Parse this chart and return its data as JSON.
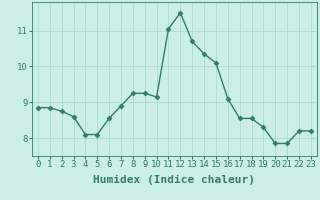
{
  "x": [
    0,
    1,
    2,
    3,
    4,
    5,
    6,
    7,
    8,
    9,
    10,
    11,
    12,
    13,
    14,
    15,
    16,
    17,
    18,
    19,
    20,
    21,
    22,
    23
  ],
  "y": [
    8.85,
    8.85,
    8.75,
    8.6,
    8.1,
    8.1,
    8.55,
    8.9,
    9.25,
    9.25,
    9.15,
    11.05,
    11.5,
    10.7,
    10.35,
    10.1,
    9.1,
    8.55,
    8.55,
    8.3,
    7.85,
    7.85,
    8.2,
    8.2
  ],
  "line_color": "#2e7d6e",
  "marker": "D",
  "marker_size": 2.5,
  "line_width": 1.0,
  "bg_color": "#cceee8",
  "grid_color": "#aaddcc",
  "xlabel": "Humidex (Indice chaleur)",
  "xlabel_fontsize": 8,
  "tick_fontsize": 6.5,
  "tick_color": "#2e7d6e",
  "yticks": [
    8,
    9,
    10,
    11
  ],
  "ylim": [
    7.5,
    11.8
  ],
  "xlim": [
    -0.5,
    23.5
  ]
}
